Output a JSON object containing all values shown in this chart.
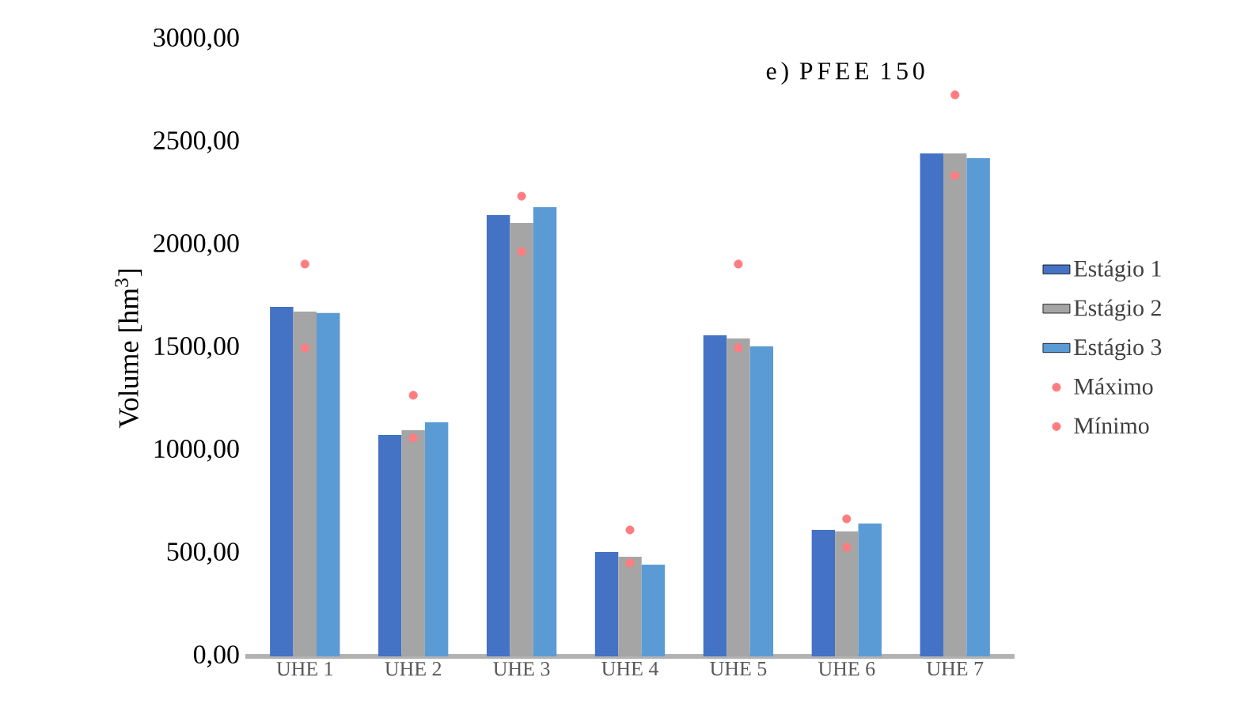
{
  "chart_data": {
    "type": "bar",
    "title": "e) PFEE 150",
    "ylabel": "Volume [hm$^{3}$]",
    "categories": [
      "UHE 1",
      "UHE 2",
      "UHE 3",
      "UHE 4",
      "UHE 5",
      "UHE 6",
      "UHE 7"
    ],
    "series": [
      {
        "name": "Estágio 1",
        "color": "#4472c4",
        "values": [
          1700,
          1077,
          2146,
          508,
          1562,
          615,
          2446
        ]
      },
      {
        "name": "Estágio 2",
        "color": "#a5a5a5",
        "values": [
          1677,
          1100,
          2108,
          485,
          1546,
          608,
          2446
        ]
      },
      {
        "name": "Estágio 3",
        "color": "#5b9bd5",
        "values": [
          1670,
          1138,
          2185,
          446,
          1508,
          646,
          2423
        ]
      },
      {
        "name": "Máximo",
        "type": "scatter",
        "color": "#ff7c80",
        "marker": "circle",
        "x": [
          "UHE 1",
          "UHE 2",
          "UHE 3",
          "UHE 4",
          "UHE 5",
          "UHE 6",
          "UHE 7"
        ],
        "values": [
          1908,
          1270,
          2238,
          615,
          1908,
          669,
          2731
        ]
      },
      {
        "name": "Mínimo",
        "type": "scatter",
        "color": "#ff7c80",
        "marker": "circle",
        "x": [
          "UHE 1",
          "UHE 2",
          "UHE 3",
          "UHE 4",
          "UHE 5",
          "UHE 6",
          "UHE 7"
        ],
        "values": [
          1500,
          1062,
          1969,
          454,
          1500,
          531,
          2338
        ]
      }
    ],
    "ylim": [
      0,
      3000
    ],
    "yticks": [
      {
        "value": 0,
        "label": "0,00"
      },
      {
        "value": 500,
        "label": "500,00"
      },
      {
        "value": 1000,
        "label": "1000,00"
      },
      {
        "value": 1500,
        "label": "1500,00"
      },
      {
        "value": 2000,
        "label": "2000,00"
      },
      {
        "value": 2500,
        "label": "2500,00"
      },
      {
        "value": 3000,
        "label": "3000,00"
      }
    ],
    "grid": false,
    "legend": "right"
  }
}
